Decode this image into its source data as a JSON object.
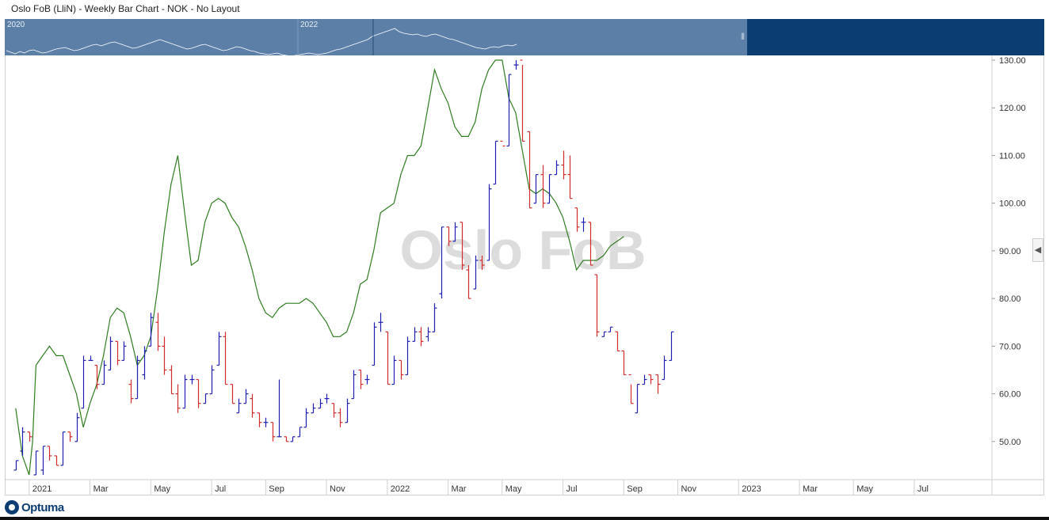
{
  "window": {
    "title": "Oslo FoB (LliN) - Weekly Bar Chart - NOK - No Layout"
  },
  "overview": {
    "year_labels": [
      "2020",
      "2022"
    ]
  },
  "watermark": "Oslo FoB",
  "brand": {
    "name": "Optuma"
  },
  "colors": {
    "up": "#1f1fb5",
    "down": "#d42a2a",
    "indicator": "#2e7d1e",
    "overview_bg": "#5b7fa6",
    "overview_window": "#0b3d73"
  },
  "icons": {
    "collapse": "chevron-left-icon",
    "brand": "optuma-logo-icon"
  },
  "chart_data": {
    "type": "bar",
    "title": "Oslo FoB (LliN) - Weekly Bar Chart - NOK - No Layout",
    "ylim": [
      42,
      131
    ],
    "y_ticks": [
      "50.00",
      "60.00",
      "70.00",
      "80.00",
      "90.00",
      "100.00",
      "110.00",
      "120.00",
      "130.00"
    ],
    "x_labels": [
      {
        "label": "2021",
        "t": 0
      },
      {
        "label": "Mar",
        "t": 9
      },
      {
        "label": "May",
        "t": 18
      },
      {
        "label": "Jul",
        "t": 27
      },
      {
        "label": "Sep",
        "t": 35
      },
      {
        "label": "Nov",
        "t": 44
      },
      {
        "label": "2022",
        "t": 53
      },
      {
        "label": "Mar",
        "t": 62
      },
      {
        "label": "May",
        "t": 70
      },
      {
        "label": "Jul",
        "t": 79
      },
      {
        "label": "Sep",
        "t": 88
      },
      {
        "label": "Nov",
        "t": 96
      },
      {
        "label": "2023",
        "t": 105
      },
      {
        "label": "Mar",
        "t": 114
      },
      {
        "label": "May",
        "t": 122
      },
      {
        "label": "Jul",
        "t": 131
      }
    ],
    "t_range": [
      -3.5,
      142.5
    ],
    "bars": [
      [
        -2,
        44,
        46,
        44,
        46
      ],
      [
        -1,
        48,
        53,
        47,
        52
      ],
      [
        0,
        52,
        52,
        50,
        51
      ],
      [
        1,
        43,
        48,
        43,
        48
      ],
      [
        2,
        44,
        49,
        43,
        49
      ],
      [
        3,
        49,
        49,
        46,
        47
      ],
      [
        4,
        47,
        47,
        45,
        45
      ],
      [
        5,
        45,
        52,
        45,
        52
      ],
      [
        6,
        52,
        52,
        50,
        51
      ],
      [
        7,
        50,
        56,
        50,
        55
      ],
      [
        8,
        57,
        68,
        57,
        67
      ],
      [
        9,
        67,
        68,
        67,
        67
      ],
      [
        10,
        66,
        66,
        61,
        62
      ],
      [
        11,
        62,
        67,
        62,
        66
      ],
      [
        12,
        65,
        72,
        65,
        71
      ],
      [
        13,
        71,
        71,
        66,
        67
      ],
      [
        14,
        67,
        71,
        67,
        70
      ],
      [
        15,
        62,
        63,
        58,
        59
      ],
      [
        16,
        59,
        68,
        59,
        67
      ],
      [
        17,
        64,
        70,
        63,
        69
      ],
      [
        18,
        70,
        77,
        70,
        76
      ],
      [
        19,
        75,
        77,
        69,
        70
      ],
      [
        20,
        70,
        72,
        64,
        65
      ],
      [
        21,
        65,
        66,
        60,
        60
      ],
      [
        22,
        60,
        62,
        56,
        57
      ],
      [
        23,
        57,
        64,
        57,
        63
      ],
      [
        24,
        63,
        64,
        62,
        63
      ],
      [
        25,
        63,
        63,
        57,
        58
      ],
      [
        26,
        58,
        60,
        58,
        60
      ],
      [
        27,
        60,
        66,
        60,
        65
      ],
      [
        28,
        66,
        73,
        66,
        72
      ],
      [
        29,
        72,
        73,
        62,
        62
      ],
      [
        30,
        62,
        62,
        58,
        58
      ],
      [
        31,
        56,
        59,
        56,
        58
      ],
      [
        32,
        58,
        61,
        58,
        60
      ],
      [
        33,
        59,
        60,
        55,
        56
      ],
      [
        34,
        56,
        56,
        53,
        54
      ],
      [
        35,
        54,
        55,
        53,
        54
      ],
      [
        36,
        54,
        54,
        50,
        51
      ],
      [
        37,
        51,
        63,
        51,
        51
      ],
      [
        38,
        51,
        51,
        50,
        50
      ],
      [
        39,
        50,
        51,
        50,
        51
      ],
      [
        40,
        51,
        53,
        51,
        53
      ],
      [
        41,
        53,
        57,
        53,
        56
      ],
      [
        42,
        56,
        58,
        56,
        57
      ],
      [
        43,
        57,
        59,
        57,
        58
      ],
      [
        44,
        59,
        60,
        58,
        59
      ],
      [
        45,
        58,
        58,
        55,
        56
      ],
      [
        46,
        56,
        57,
        53,
        54
      ],
      [
        47,
        54,
        59,
        54,
        58
      ],
      [
        48,
        59,
        65,
        59,
        64
      ],
      [
        49,
        65,
        65,
        61,
        62
      ],
      [
        50,
        63,
        64,
        62,
        63
      ],
      [
        51,
        66,
        75,
        66,
        74
      ],
      [
        52,
        75,
        77,
        73,
        75
      ],
      [
        53,
        73,
        73,
        62,
        62
      ],
      [
        54,
        62,
        68,
        62,
        67
      ],
      [
        55,
        67,
        67,
        63,
        64
      ],
      [
        56,
        64,
        72,
        64,
        71
      ],
      [
        57,
        71,
        74,
        71,
        73
      ],
      [
        58,
        73,
        74,
        70,
        71
      ],
      [
        59,
        72,
        74,
        71,
        73
      ],
      [
        60,
        73,
        79,
        73,
        78
      ],
      [
        61,
        81,
        95,
        80,
        95
      ],
      [
        62,
        95,
        95,
        91,
        92
      ],
      [
        63,
        92,
        96,
        92,
        95
      ],
      [
        64,
        96,
        96,
        86,
        87
      ],
      [
        65,
        86,
        87,
        80,
        80
      ],
      [
        66,
        82,
        89,
        82,
        88
      ],
      [
        67,
        88,
        89,
        86,
        87
      ],
      [
        68,
        88,
        104,
        88,
        103
      ],
      [
        69,
        104,
        113,
        104,
        113
      ],
      [
        70,
        113,
        112,
        112,
        112
      ],
      [
        71,
        112,
        127,
        112,
        127
      ],
      [
        72,
        129,
        130,
        128,
        129
      ],
      [
        73,
        130,
        129,
        113,
        113
      ],
      [
        74,
        115,
        115,
        99,
        99
      ],
      [
        75,
        100,
        106,
        100,
        106
      ],
      [
        76,
        106,
        108,
        99,
        100
      ],
      [
        77,
        100,
        106,
        100,
        106
      ],
      [
        78,
        106,
        109,
        106,
        108
      ],
      [
        79,
        108,
        111,
        105,
        106
      ],
      [
        80,
        106,
        110,
        101,
        101
      ],
      [
        81,
        99,
        99,
        94,
        95
      ],
      [
        82,
        96,
        97,
        94,
        96
      ],
      [
        83,
        96,
        96,
        87,
        87
      ],
      [
        84,
        85,
        85,
        72,
        73
      ],
      [
        85,
        72,
        73,
        72,
        73
      ],
      [
        86,
        73,
        74,
        73,
        74
      ],
      [
        87,
        73,
        73,
        69,
        69
      ],
      [
        88,
        69,
        69,
        64,
        64
      ],
      [
        89,
        64,
        62,
        58,
        58
      ],
      [
        90,
        56,
        62,
        56,
        62
      ],
      [
        91,
        62,
        64,
        62,
        63
      ],
      [
        92,
        64,
        64,
        62,
        63
      ],
      [
        93,
        64,
        64,
        60,
        62
      ],
      [
        94,
        63,
        68,
        63,
        67
      ],
      [
        95,
        67,
        73,
        67,
        73
      ]
    ],
    "indicator": [
      [
        -2,
        57
      ],
      [
        -1,
        47
      ],
      [
        0,
        43
      ],
      [
        0.5,
        50
      ],
      [
        1,
        66
      ],
      [
        2,
        68
      ],
      [
        3,
        70
      ],
      [
        4,
        68
      ],
      [
        5,
        68
      ],
      [
        6,
        64
      ],
      [
        7,
        60
      ],
      [
        8,
        53
      ],
      [
        9,
        58
      ],
      [
        10,
        62
      ],
      [
        11,
        68
      ],
      [
        12,
        76
      ],
      [
        13,
        78
      ],
      [
        14,
        77
      ],
      [
        15,
        72
      ],
      [
        16,
        66
      ],
      [
        17,
        68
      ],
      [
        18,
        72
      ],
      [
        19,
        82
      ],
      [
        20,
        94
      ],
      [
        21,
        104
      ],
      [
        22,
        110
      ],
      [
        23,
        98
      ],
      [
        24,
        87
      ],
      [
        25,
        88
      ],
      [
        26,
        96
      ],
      [
        27,
        100
      ],
      [
        28,
        101
      ],
      [
        29,
        100
      ],
      [
        30,
        97
      ],
      [
        31,
        95
      ],
      [
        32,
        91
      ],
      [
        33,
        86
      ],
      [
        34,
        80
      ],
      [
        35,
        77
      ],
      [
        36,
        76
      ],
      [
        37,
        78
      ],
      [
        38,
        79
      ],
      [
        39,
        79
      ],
      [
        40,
        79
      ],
      [
        41,
        80
      ],
      [
        42,
        79
      ],
      [
        43,
        77
      ],
      [
        44,
        75
      ],
      [
        45,
        72
      ],
      [
        46,
        72
      ],
      [
        47,
        73
      ],
      [
        48,
        77
      ],
      [
        49,
        83
      ],
      [
        50,
        84
      ],
      [
        51,
        90
      ],
      [
        52,
        98
      ],
      [
        53,
        99
      ],
      [
        54,
        100
      ],
      [
        55,
        106
      ],
      [
        56,
        110
      ],
      [
        57,
        110
      ],
      [
        58,
        112
      ],
      [
        59,
        120
      ],
      [
        60,
        128
      ],
      [
        61,
        124
      ],
      [
        62,
        121
      ],
      [
        63,
        116
      ],
      [
        64,
        114
      ],
      [
        65,
        114
      ],
      [
        66,
        117
      ],
      [
        67,
        124
      ],
      [
        68,
        128
      ],
      [
        69,
        130
      ],
      [
        70,
        130
      ],
      [
        71,
        122
      ],
      [
        72,
        119
      ],
      [
        73,
        111
      ],
      [
        74,
        103
      ],
      [
        75,
        102
      ],
      [
        76,
        103
      ],
      [
        77,
        102
      ],
      [
        78,
        100
      ],
      [
        79,
        97
      ],
      [
        80,
        92
      ],
      [
        81,
        86
      ],
      [
        82,
        88
      ],
      [
        83,
        88
      ],
      [
        84,
        88
      ],
      [
        85,
        89
      ],
      [
        86,
        91
      ],
      [
        87,
        92
      ],
      [
        88,
        93
      ]
    ]
  }
}
